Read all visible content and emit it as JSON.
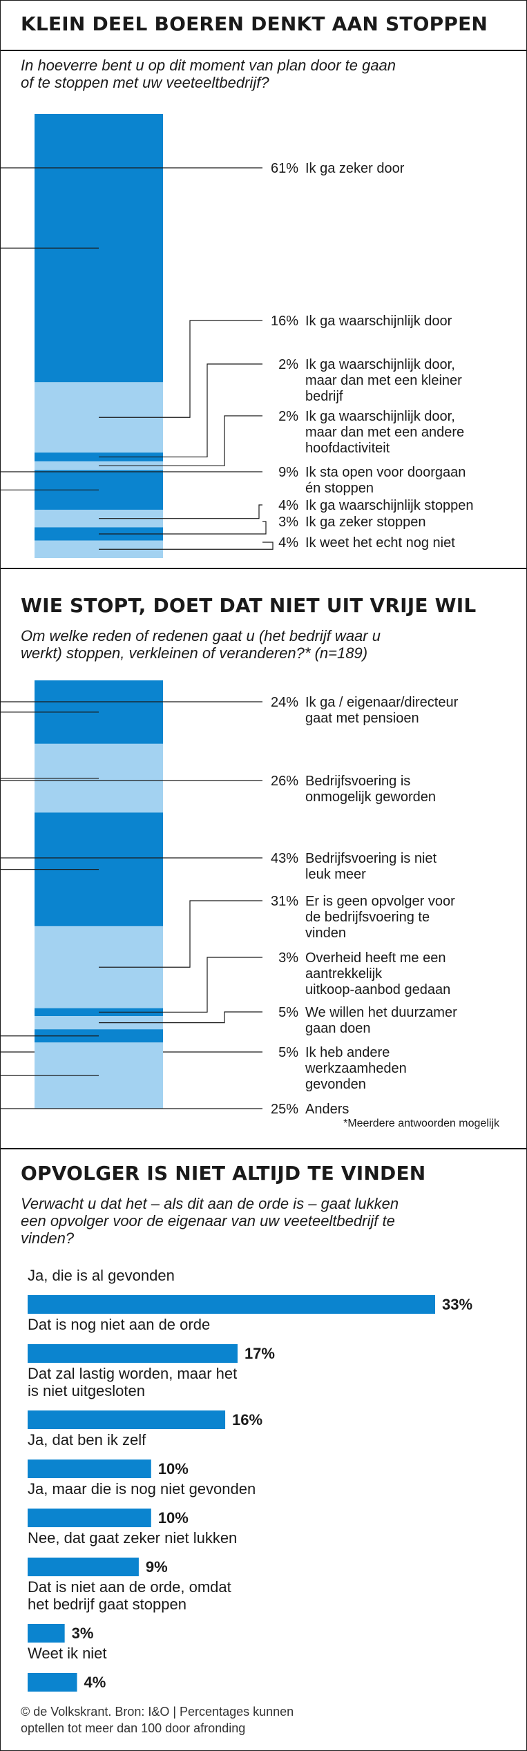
{
  "colors": {
    "dark": "#0b84cf",
    "light": "#a3d2f1",
    "text": "#1a1a1a"
  },
  "sections": [
    {
      "title": "KLEIN DEEL BOEREN DENKT AAN STOPPEN",
      "question": "In hoeverre bent u op dit moment van plan door te gaan\nof te stoppen met uw veeteeltbedrijf?"
    },
    {
      "title": "WIE STOPT, DOET DAT NIET UIT VRIJE WIL",
      "question": "Om welke reden of redenen gaat u (het bedrijf waar u\nwerkt) stoppen, verkleinen of veranderen?* (n=189)",
      "note": "*Meerdere antwoorden mogelijk"
    },
    {
      "title": "OPVOLGER IS NIET ALTIJD TE VINDEN",
      "question": "Verwacht u dat het – als dit aan de orde is – gaat lukken\neen opvolger voor de eigenaar van uw veeteeltbedrijf te\nvinden?"
    }
  ],
  "footer": "© de Volkskrant. Bron: I&O | Percentages kunnen\noptellen tot meer dan 100 door afronding",
  "chart_data": [
    {
      "type": "bar",
      "title": "KLEIN DEEL BOEREN DENKT AAN STOPPEN",
      "categories": [
        "Ik ga zeker door",
        "Ik ga waarschijnlijk door",
        "Ik ga waarschijnlijk door, maar dan met een kleiner bedrijf",
        "Ik ga waarschijnlijk door, maar dan met een andere hoofdactiviteit",
        "Ik sta open voor doorgaan én stoppen",
        "Ik ga waarschijnlijk stoppen",
        "Ik ga zeker stoppen",
        "Ik weet het echt nog niet"
      ],
      "values": [
        61,
        16,
        2,
        2,
        9,
        4,
        3,
        4
      ],
      "value_labels": [
        "61%",
        "16%",
        "2%",
        "2%",
        "9%",
        "4%",
        "3%",
        "4%"
      ],
      "label_lines": [
        [
          "Ik ga zeker door"
        ],
        [
          "Ik ga waarschijnlijk door"
        ],
        [
          "Ik ga waarschijnlijk door,",
          "maar dan met een kleiner",
          "bedrijf"
        ],
        [
          "Ik ga waarschijnlijk door,",
          "maar dan met een andere",
          "hoofdactiviteit"
        ],
        [
          "Ik sta open voor doorgaan",
          "én stoppen"
        ],
        [
          "Ik ga waarschijnlijk stoppen"
        ],
        [
          "Ik ga zeker stoppen"
        ],
        [
          "Ik weet het echt nog niet"
        ]
      ]
    },
    {
      "type": "bar",
      "title": "WIE STOPT, DOET DAT NIET UIT VRIJE WIL",
      "categories": [
        "Ik ga / eigenaar/directeur gaat met pensioen",
        "Bedrijfsvoering is onmogelijk geworden",
        "Bedrijfsvoering is niet leuk meer",
        "Er is geen opvolger voor de bedrijfsvoering te vinden",
        "Overheid heeft me een aantrekkelijk uitkoop-aanbod gedaan",
        "We willen het duurzamer gaan doen",
        "Ik heb andere werkzaamheden gevonden",
        "Anders"
      ],
      "values": [
        24,
        26,
        43,
        31,
        3,
        5,
        5,
        25
      ],
      "value_labels": [
        "24%",
        "26%",
        "43%",
        "31%",
        "3%",
        "5%",
        "5%",
        "25%"
      ],
      "label_lines": [
        [
          "Ik ga / eigenaar/directeur",
          "gaat met pensioen"
        ],
        [
          "Bedrijfsvoering is",
          "onmogelijk geworden"
        ],
        [
          "Bedrijfsvoering is niet",
          "leuk meer"
        ],
        [
          "Er is geen opvolger voor",
          "de bedrijfsvoering te",
          "vinden"
        ],
        [
          "Overheid heeft me een",
          "aantrekkelijk",
          "uitkoop-aanbod gedaan"
        ],
        [
          "We willen het duurzamer",
          "gaan doen"
        ],
        [
          "Ik heb andere",
          "werkzaamheden",
          "gevonden"
        ],
        [
          "Anders"
        ]
      ]
    },
    {
      "type": "bar",
      "title": "OPVOLGER IS NIET ALTIJD TE VINDEN",
      "categories": [
        "Ja, die is al gevonden",
        "Dat is nog niet aan de orde",
        "Dat zal lastig worden, maar het is niet uitgesloten",
        "Ja, dat ben ik zelf",
        "Ja, maar die is nog niet gevonden",
        "Nee, dat gaat zeker niet lukken",
        "Dat is niet aan de orde, omdat het bedrijf gaat stoppen",
        "Weet ik niet"
      ],
      "values": [
        33,
        17,
        16,
        10,
        10,
        9,
        3,
        4
      ],
      "value_labels": [
        "33%",
        "17%",
        "16%",
        "10%",
        "10%",
        "9%",
        "3%",
        "4%"
      ],
      "label_lines": [
        [
          "Ja, die is al gevonden"
        ],
        [
          "Dat is nog niet aan de orde"
        ],
        [
          "Dat zal lastig worden, maar het",
          "is niet uitgesloten"
        ],
        [
          "Ja, dat ben ik zelf"
        ],
        [
          "Ja, maar die is nog niet gevonden"
        ],
        [
          "Nee, dat gaat zeker niet lukken"
        ],
        [
          "Dat is niet aan de orde, omdat",
          "het bedrijf gaat stoppen"
        ],
        [
          "Weet ik niet"
        ]
      ]
    }
  ]
}
